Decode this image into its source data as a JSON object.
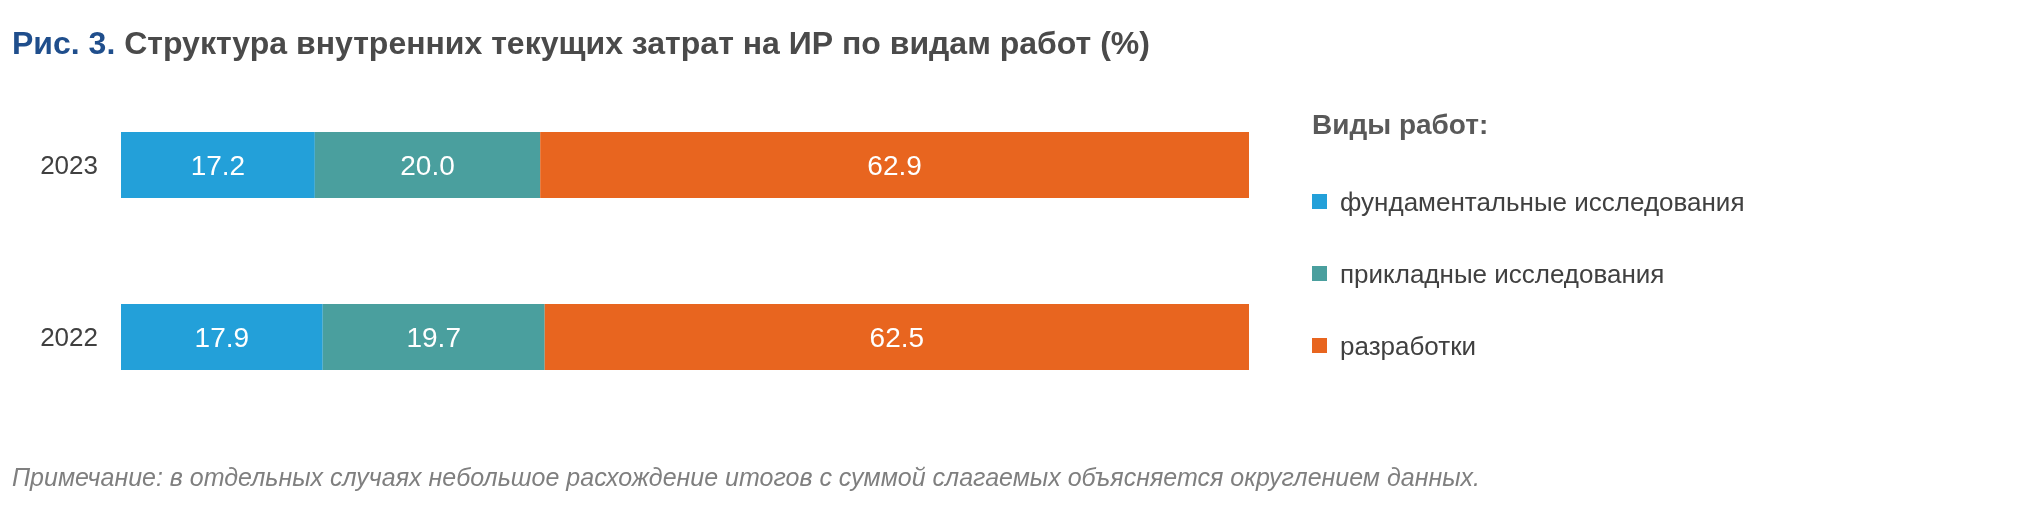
{
  "chart_data": {
    "type": "bar",
    "orientation": "horizontal",
    "stacked": true,
    "title": "Рис. 3. Структура внутренних текущих затрат на ИР по видам работ (%)",
    "legend_title": "Виды работ:",
    "legend": "right",
    "tick_labels": "y",
    "categories": [
      "2023",
      "2022"
    ],
    "series": [
      {
        "name": "фундаментальные исследования",
        "color": "#23a0d9",
        "values": [
          17.2,
          17.9
        ],
        "value_labels": [
          "17.2",
          "17.9"
        ]
      },
      {
        "name": "прикладные исследования",
        "color": "#4a9f9e",
        "values": [
          20.0,
          19.7
        ],
        "value_labels": [
          "20.0",
          "19.7"
        ]
      },
      {
        "name": "разработки",
        "color": "#e8651f",
        "values": [
          62.9,
          62.5
        ],
        "value_labels": [
          "62.9",
          "62.5"
        ]
      }
    ],
    "annotations": [
      "Примечание: в отдельных случаях небольшое расхождение итогов с суммой слагаемых объясняется округлением данных."
    ]
  }
}
